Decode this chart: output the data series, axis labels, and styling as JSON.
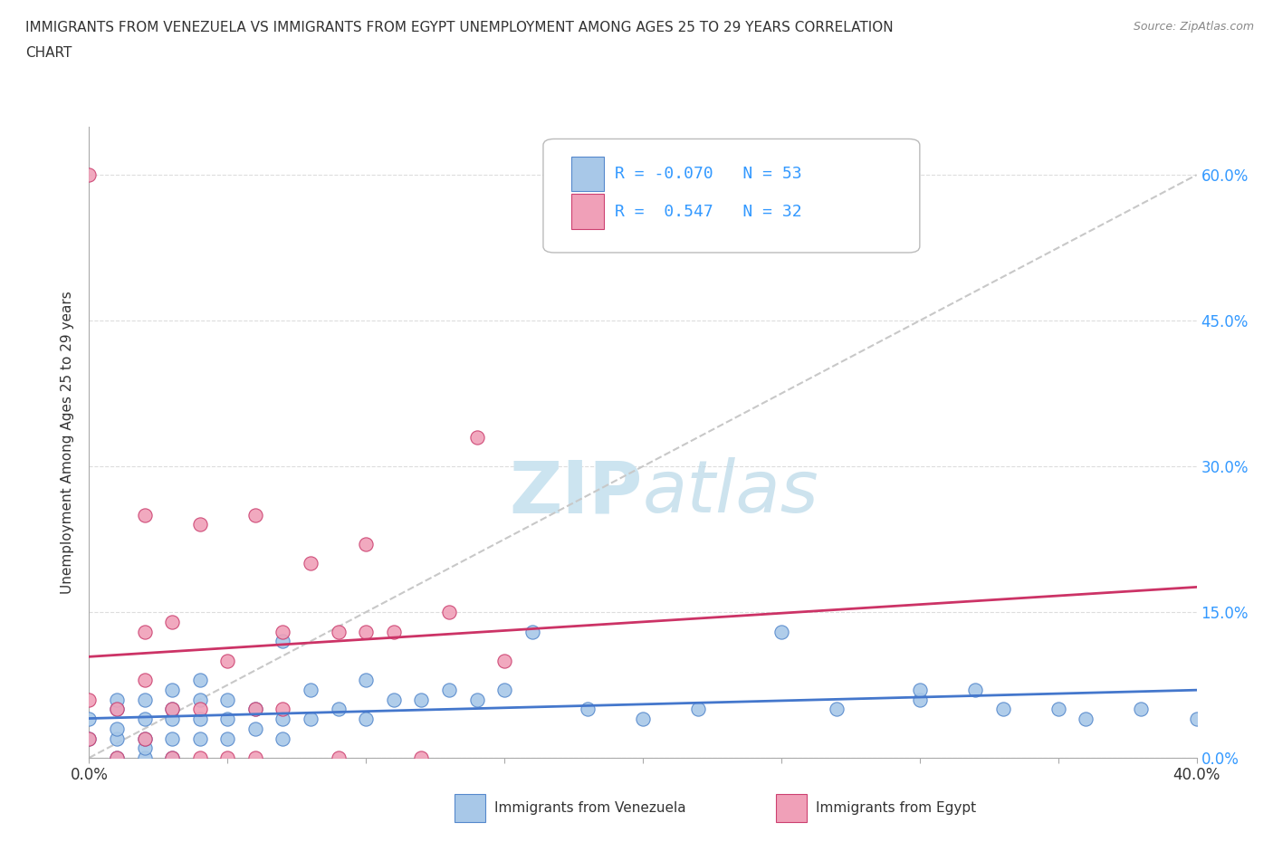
{
  "title_line1": "IMMIGRANTS FROM VENEZUELA VS IMMIGRANTS FROM EGYPT UNEMPLOYMENT AMONG AGES 25 TO 29 YEARS CORRELATION",
  "title_line2": "CHART",
  "source": "Source: ZipAtlas.com",
  "ylabel": "Unemployment Among Ages 25 to 29 years",
  "xlim": [
    0.0,
    0.4
  ],
  "ylim": [
    -0.02,
    0.65
  ],
  "plot_ylim": [
    0.0,
    0.65
  ],
  "xticks": [
    0.0,
    0.05,
    0.1,
    0.15,
    0.2,
    0.25,
    0.3,
    0.35,
    0.4
  ],
  "yticks": [
    0.0,
    0.15,
    0.3,
    0.45,
    0.6
  ],
  "ytick_labels": [
    "0.0%",
    "15.0%",
    "30.0%",
    "45.0%",
    "60.0%"
  ],
  "legend_R1": "-0.070",
  "legend_N1": "53",
  "legend_R2": "0.547",
  "legend_N2": "32",
  "color_venezuela": "#a8c8e8",
  "color_egypt": "#f0a0b8",
  "color_venezuela_edge": "#5588cc",
  "color_egypt_edge": "#cc4070",
  "trend_color_venezuela": "#4477cc",
  "trend_color_egypt": "#cc3366",
  "gray_dash_color": "#c8c8c8",
  "watermark_color": "#cce4f0",
  "background_color": "#ffffff",
  "grid_color": "#dddddd",
  "text_color": "#333333",
  "blue_label_color": "#3399ff",
  "venezuela_x": [
    0.0,
    0.0,
    0.01,
    0.01,
    0.01,
    0.01,
    0.01,
    0.02,
    0.02,
    0.02,
    0.02,
    0.02,
    0.03,
    0.03,
    0.03,
    0.03,
    0.03,
    0.04,
    0.04,
    0.04,
    0.04,
    0.05,
    0.05,
    0.05,
    0.06,
    0.06,
    0.07,
    0.07,
    0.07,
    0.08,
    0.08,
    0.09,
    0.1,
    0.1,
    0.11,
    0.12,
    0.13,
    0.14,
    0.15,
    0.16,
    0.18,
    0.2,
    0.22,
    0.25,
    0.27,
    0.3,
    0.3,
    0.32,
    0.33,
    0.35,
    0.36,
    0.38,
    0.4
  ],
  "venezuela_y": [
    0.02,
    0.04,
    0.0,
    0.02,
    0.03,
    0.05,
    0.06,
    0.0,
    0.01,
    0.02,
    0.04,
    0.06,
    0.0,
    0.02,
    0.04,
    0.05,
    0.07,
    0.02,
    0.04,
    0.06,
    0.08,
    0.02,
    0.04,
    0.06,
    0.03,
    0.05,
    0.02,
    0.04,
    0.12,
    0.04,
    0.07,
    0.05,
    0.04,
    0.08,
    0.06,
    0.06,
    0.07,
    0.06,
    0.07,
    0.13,
    0.05,
    0.04,
    0.05,
    0.13,
    0.05,
    0.06,
    0.07,
    0.07,
    0.05,
    0.05,
    0.04,
    0.05,
    0.04
  ],
  "egypt_x": [
    0.0,
    0.0,
    0.0,
    0.01,
    0.01,
    0.02,
    0.02,
    0.02,
    0.02,
    0.03,
    0.03,
    0.03,
    0.04,
    0.04,
    0.04,
    0.05,
    0.05,
    0.06,
    0.06,
    0.06,
    0.07,
    0.07,
    0.08,
    0.09,
    0.09,
    0.1,
    0.1,
    0.11,
    0.12,
    0.13,
    0.14,
    0.15
  ],
  "egypt_y": [
    0.02,
    0.06,
    0.6,
    0.0,
    0.05,
    0.02,
    0.08,
    0.13,
    0.25,
    0.0,
    0.05,
    0.14,
    0.0,
    0.05,
    0.24,
    0.0,
    0.1,
    0.0,
    0.05,
    0.25,
    0.05,
    0.13,
    0.2,
    0.0,
    0.13,
    0.13,
    0.22,
    0.13,
    0.0,
    0.15,
    0.33,
    0.1
  ]
}
